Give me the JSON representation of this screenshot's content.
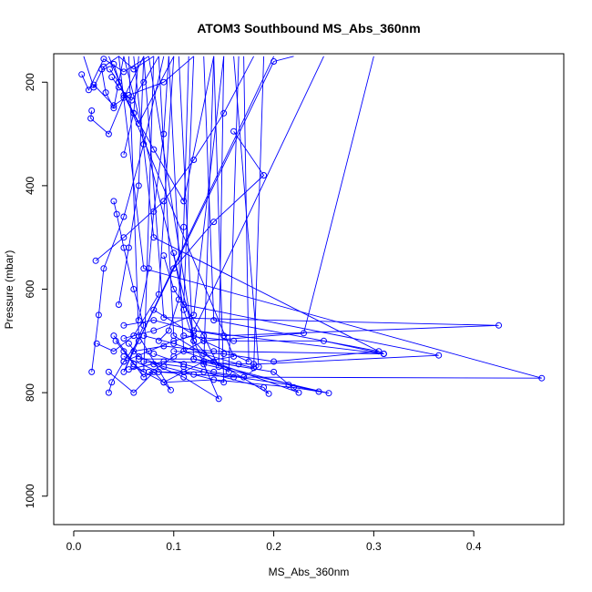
{
  "chart_data": {
    "type": "line",
    "title": "ATOM3 Southbound MS_Abs_360nm",
    "xlabel": "MS_Abs_360nm",
    "ylabel": "Pressure (mbar)",
    "xlim": [
      -0.02,
      0.49
    ],
    "ylim": [
      1055,
      145
    ],
    "y_axis_inverted": true,
    "x_ticks": [
      0.0,
      0.1,
      0.2,
      0.3,
      0.4
    ],
    "x_tick_labels": [
      "0.0",
      "0.1",
      "0.2",
      "0.3",
      "0.4"
    ],
    "y_ticks": [
      200,
      400,
      600,
      800,
      1000
    ],
    "y_tick_labels": [
      "200",
      "400",
      "600",
      "800",
      "1000"
    ],
    "grid": false,
    "legend": "none",
    "line_color": "#0000ff",
    "marker": "open-circle",
    "series": [
      {
        "values": [
          [
            0.01,
            150
          ],
          [
            0.02,
            210
          ],
          [
            0.03,
            170
          ],
          [
            0.045,
            150
          ],
          [
            0.06,
            175
          ],
          [
            0.08,
            150
          ]
        ]
      },
      {
        "values": [
          [
            0.008,
            185
          ],
          [
            0.015,
            215
          ],
          [
            0.03,
            155
          ],
          [
            0.05,
            180
          ],
          [
            0.075,
            150
          ]
        ]
      },
      {
        "values": [
          [
            0.02,
            205
          ],
          [
            0.04,
            245
          ],
          [
            0.055,
            225
          ],
          [
            0.09,
            200
          ],
          [
            0.12,
            150
          ]
        ]
      },
      {
        "values": [
          [
            0.018,
            255
          ],
          [
            0.017,
            270
          ],
          [
            0.035,
            300
          ],
          [
            0.05,
            230
          ],
          [
            0.07,
            150
          ]
        ]
      },
      {
        "values": [
          [
            0.036,
            175
          ],
          [
            0.045,
            200
          ],
          [
            0.06,
            260
          ],
          [
            0.08,
            330
          ],
          [
            0.11,
            430
          ],
          [
            0.14,
            150
          ]
        ]
      },
      {
        "values": [
          [
            0.04,
            165
          ],
          [
            0.05,
            225
          ],
          [
            0.065,
            280
          ],
          [
            0.1,
            150
          ]
        ]
      },
      {
        "values": [
          [
            0.16,
            295
          ],
          [
            0.19,
            380
          ],
          [
            0.14,
            470
          ],
          [
            0.1,
            560
          ],
          [
            0.08,
            640
          ],
          [
            0.13,
            700
          ],
          [
            0.175,
            740
          ],
          [
            0.17,
            150
          ]
        ]
      },
      {
        "values": [
          [
            0.04,
            430
          ],
          [
            0.043,
            455
          ],
          [
            0.05,
            520
          ],
          [
            0.06,
            600
          ],
          [
            0.07,
            670
          ],
          [
            0.05,
            760
          ],
          [
            0.2,
            150
          ]
        ]
      },
      {
        "values": [
          [
            0.022,
            545
          ],
          [
            0.05,
            500
          ],
          [
            0.09,
            430
          ],
          [
            0.12,
            350
          ],
          [
            0.15,
            260
          ],
          [
            0.18,
            150
          ]
        ]
      },
      {
        "values": [
          [
            0.1,
            530
          ],
          [
            0.11,
            640
          ],
          [
            0.12,
            700
          ],
          [
            0.14,
            740
          ],
          [
            0.155,
            760
          ],
          [
            0.165,
            150
          ]
        ]
      },
      {
        "values": [
          [
            0.09,
            535
          ],
          [
            0.1,
            600
          ],
          [
            0.13,
            690
          ],
          [
            0.145,
            750
          ],
          [
            0.15,
            150
          ]
        ]
      },
      {
        "values": [
          [
            0.018,
            760
          ],
          [
            0.025,
            650
          ],
          [
            0.03,
            560
          ],
          [
            0.05,
            460
          ],
          [
            0.07,
            320
          ],
          [
            0.09,
            150
          ]
        ]
      },
      {
        "values": [
          [
            0.023,
            705
          ],
          [
            0.04,
            720
          ],
          [
            0.06,
            690
          ],
          [
            0.085,
            610
          ],
          [
            0.1,
            150
          ]
        ]
      },
      {
        "values": [
          [
            0.035,
            800
          ],
          [
            0.038,
            780
          ],
          [
            0.05,
            740
          ],
          [
            0.065,
            700
          ],
          [
            0.2,
            160
          ],
          [
            0.22,
            150
          ]
        ]
      },
      {
        "values": [
          [
            0.04,
            690
          ],
          [
            0.07,
            770
          ],
          [
            0.1,
            730
          ],
          [
            0.13,
            700
          ],
          [
            0.23,
            685
          ],
          [
            0.3,
            150
          ]
        ]
      },
      {
        "values": [
          [
            0.05,
            670
          ],
          [
            0.08,
            660
          ],
          [
            0.12,
            680
          ],
          [
            0.15,
            690
          ],
          [
            0.425,
            670
          ],
          [
            0.09,
            655
          ],
          [
            0.07,
            150
          ]
        ]
      },
      {
        "values": [
          [
            0.06,
            720
          ],
          [
            0.09,
            710
          ],
          [
            0.14,
            720
          ],
          [
            0.31,
            725
          ],
          [
            0.08,
            500
          ],
          [
            0.06,
            150
          ]
        ]
      },
      {
        "values": [
          [
            0.055,
            755
          ],
          [
            0.09,
            740
          ],
          [
            0.18,
            745
          ],
          [
            0.365,
            728
          ],
          [
            0.11,
            630
          ],
          [
            0.12,
            150
          ]
        ]
      },
      {
        "values": [
          [
            0.05,
            730
          ],
          [
            0.085,
            760
          ],
          [
            0.16,
            770
          ],
          [
            0.468,
            772
          ],
          [
            0.07,
            560
          ],
          [
            0.045,
            150
          ]
        ]
      },
      {
        "values": [
          [
            0.07,
            740
          ],
          [
            0.11,
            750
          ],
          [
            0.19,
            790
          ],
          [
            0.195,
            802
          ],
          [
            0.1,
            690
          ],
          [
            0.085,
            150
          ]
        ]
      },
      {
        "values": [
          [
            0.065,
            735
          ],
          [
            0.12,
            735
          ],
          [
            0.2,
            760
          ],
          [
            0.225,
            800
          ],
          [
            0.11,
            720
          ],
          [
            0.095,
            150
          ]
        ]
      },
      {
        "values": [
          [
            0.075,
            760
          ],
          [
            0.13,
            760
          ],
          [
            0.215,
            785
          ],
          [
            0.245,
            798
          ],
          [
            0.12,
            735
          ],
          [
            0.105,
            150
          ]
        ]
      },
      {
        "values": [
          [
            0.09,
            780
          ],
          [
            0.14,
            775
          ],
          [
            0.22,
            790
          ],
          [
            0.255,
            801
          ],
          [
            0.13,
            745
          ],
          [
            0.14,
            150
          ]
        ]
      },
      {
        "values": [
          [
            0.08,
            745
          ],
          [
            0.11,
            770
          ],
          [
            0.145,
            812
          ],
          [
            0.12,
            700
          ],
          [
            0.075,
            150
          ]
        ]
      },
      {
        "values": [
          [
            0.035,
            760
          ],
          [
            0.06,
            800
          ],
          [
            0.08,
            760
          ],
          [
            0.097,
            795
          ],
          [
            0.065,
            690
          ],
          [
            0.055,
            150
          ]
        ]
      },
      {
        "values": [
          [
            0.1,
            720
          ],
          [
            0.15,
            725
          ],
          [
            0.2,
            740
          ],
          [
            0.305,
            720
          ],
          [
            0.14,
            660
          ],
          [
            0.13,
            150
          ]
        ]
      },
      {
        "values": [
          [
            0.11,
            690
          ],
          [
            0.16,
            700
          ],
          [
            0.25,
            700
          ],
          [
            0.31,
            725
          ],
          [
            0.12,
            680
          ],
          [
            0.25,
            150
          ]
        ]
      },
      {
        "values": [
          [
            0.05,
            695
          ],
          [
            0.08,
            680
          ],
          [
            0.12,
            650
          ],
          [
            0.15,
            150
          ]
        ]
      },
      {
        "values": [
          [
            0.065,
            660
          ],
          [
            0.075,
            560
          ],
          [
            0.08,
            450
          ],
          [
            0.09,
            300
          ],
          [
            0.095,
            150
          ]
        ]
      },
      {
        "values": [
          [
            0.045,
            630
          ],
          [
            0.055,
            520
          ],
          [
            0.065,
            400
          ],
          [
            0.07,
            150
          ]
        ]
      },
      {
        "values": [
          [
            0.05,
            340
          ],
          [
            0.06,
            260
          ],
          [
            0.065,
            150
          ]
        ]
      },
      {
        "values": [
          [
            0.05,
            740
          ],
          [
            0.075,
            720
          ],
          [
            0.1,
            700
          ],
          [
            0.12,
            690
          ],
          [
            0.05,
            150
          ]
        ]
      },
      {
        "values": [
          [
            0.06,
            750
          ],
          [
            0.09,
            780
          ],
          [
            0.11,
            760
          ],
          [
            0.13,
            740
          ],
          [
            0.16,
            730
          ],
          [
            0.035,
            150
          ]
        ]
      },
      {
        "values": [
          [
            0.07,
            690
          ],
          [
            0.1,
            705
          ],
          [
            0.13,
            725
          ],
          [
            0.165,
            745
          ],
          [
            0.18,
            752
          ],
          [
            0.19,
            150
          ]
        ]
      },
      {
        "values": [
          [
            0.08,
            725
          ],
          [
            0.11,
            745
          ],
          [
            0.14,
            760
          ],
          [
            0.17,
            770
          ],
          [
            0.185,
            750
          ],
          [
            0.16,
            150
          ]
        ]
      },
      {
        "values": [
          [
            0.085,
            700
          ],
          [
            0.095,
            680
          ],
          [
            0.105,
            620
          ],
          [
            0.11,
            480
          ],
          [
            0.115,
            150
          ]
        ]
      },
      {
        "values": [
          [
            0.042,
            700
          ],
          [
            0.05,
            720
          ],
          [
            0.06,
            745
          ],
          [
            0.07,
            760
          ],
          [
            0.08,
            150
          ]
        ]
      },
      {
        "values": [
          [
            0.055,
            705
          ],
          [
            0.065,
            730
          ],
          [
            0.09,
            750
          ],
          [
            0.12,
            765
          ],
          [
            0.15,
            780
          ],
          [
            0.14,
            150
          ]
        ]
      },
      {
        "values": [
          [
            0.028,
            175
          ],
          [
            0.032,
            220
          ],
          [
            0.04,
            250
          ],
          [
            0.05,
            150
          ]
        ]
      },
      {
        "values": [
          [
            0.038,
            190
          ],
          [
            0.045,
            210
          ],
          [
            0.058,
            235
          ],
          [
            0.07,
            200
          ],
          [
            0.085,
            150
          ]
        ]
      }
    ]
  }
}
